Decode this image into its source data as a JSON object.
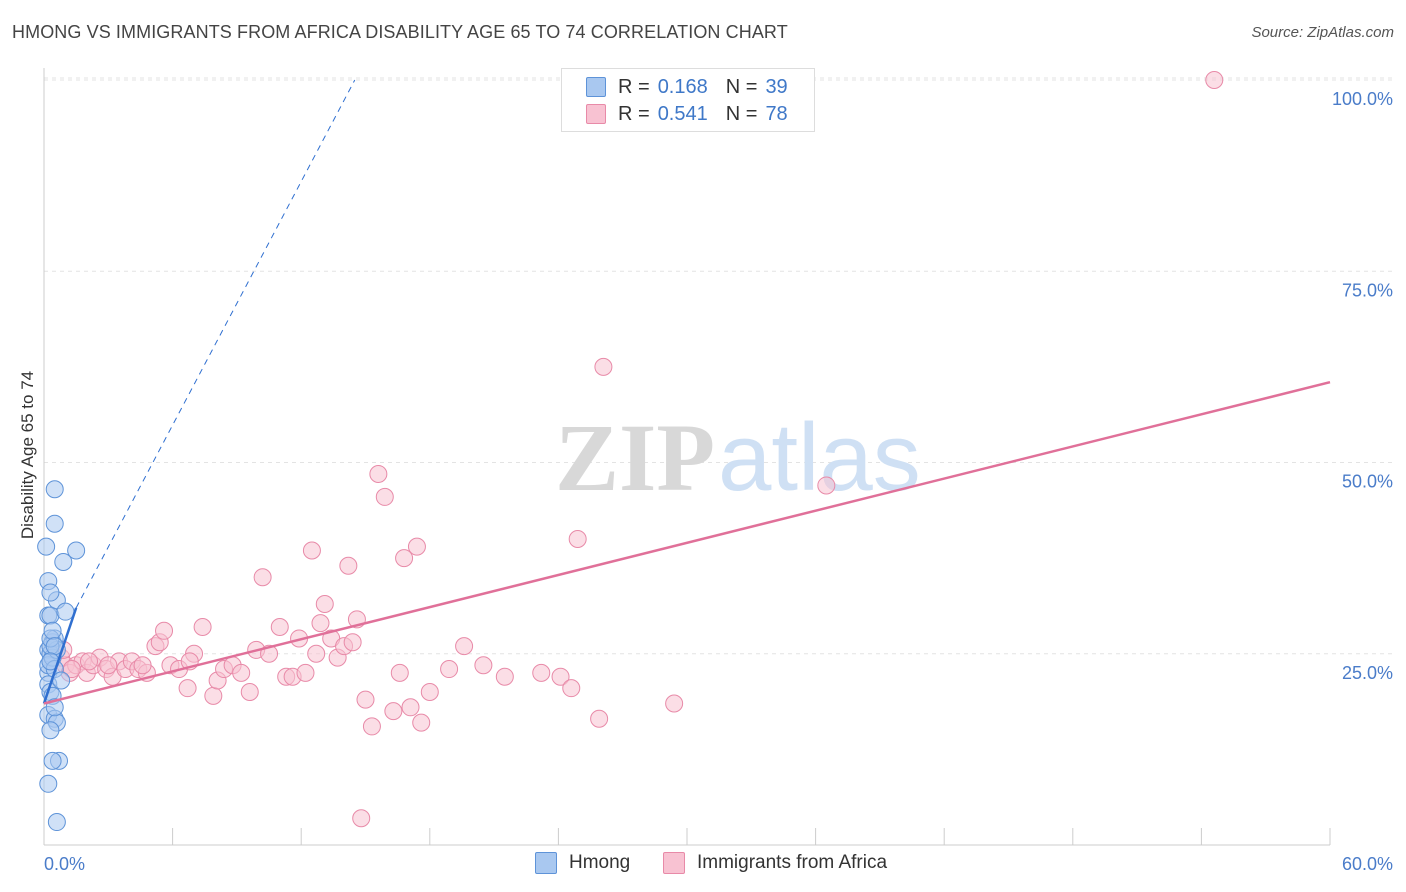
{
  "title": "HMONG VS IMMIGRANTS FROM AFRICA DISABILITY AGE 65 TO 74 CORRELATION CHART",
  "source": "Source: ZipAtlas.com",
  "watermark": {
    "zip": "ZIP",
    "atlas": "atlas"
  },
  "legend": {
    "r_label": "R =",
    "n_label": "N =",
    "rows": [
      {
        "r": "0.168",
        "n": "39",
        "color": "#a9c8f0",
        "stroke": "#5e93d8"
      },
      {
        "r": "0.541",
        "n": "78",
        "color": "#f8c2d2",
        "stroke": "#e88aa8"
      }
    ]
  },
  "bottom_legend": [
    {
      "label": "Hmong"
    },
    {
      "label": "Immigrants from Africa"
    }
  ],
  "colors": {
    "hmong_fill": "#a9c8f0",
    "hmong_stroke": "#5e93d8",
    "hmong_line": "#2f6fd0",
    "africa_fill": "#f8c2d2",
    "africa_stroke": "#e88aa8",
    "africa_line": "#e07099",
    "tick_text": "#4a7cc9",
    "grid": "#e3e3e3"
  },
  "chart_data": {
    "type": "scatter",
    "ylabel": "Disability Age 65 to 74",
    "xlim": [
      0,
      60
    ],
    "ylim": [
      0,
      102
    ],
    "x_tick_labels": [
      "0.0%",
      "60.0%"
    ],
    "y_ticks": [
      25,
      50,
      75,
      100
    ],
    "y_tick_labels": [
      "25.0%",
      "50.0%",
      "75.0%",
      "100.0%"
    ],
    "grid": "horizontal dashed",
    "series": [
      {
        "name": "Hmong",
        "trend": {
          "x": [
            0,
            1.5
          ],
          "y": [
            18.5,
            31
          ],
          "extended_to": [
            14.5,
            100
          ]
        },
        "points": [
          [
            0.2,
            22.5
          ],
          [
            0.3,
            24
          ],
          [
            0.2,
            25.5
          ],
          [
            0.4,
            26.5
          ],
          [
            0.5,
            27
          ],
          [
            0.3,
            25
          ],
          [
            0.2,
            23.5
          ],
          [
            0.4,
            24.5
          ],
          [
            0.6,
            25.5
          ],
          [
            0.3,
            26
          ],
          [
            0.5,
            23
          ],
          [
            0.2,
            21
          ],
          [
            0.3,
            20
          ],
          [
            0.4,
            19.5
          ],
          [
            0.2,
            17
          ],
          [
            0.5,
            16.5
          ],
          [
            0.6,
            16
          ],
          [
            0.3,
            15
          ],
          [
            0.5,
            18
          ],
          [
            0.8,
            21.5
          ],
          [
            0.2,
            30
          ],
          [
            0.3,
            30
          ],
          [
            0.6,
            32
          ],
          [
            1.0,
            30.5
          ],
          [
            0.2,
            34.5
          ],
          [
            0.3,
            33
          ],
          [
            0.1,
            39
          ],
          [
            0.9,
            37
          ],
          [
            1.5,
            38.5
          ],
          [
            0.5,
            42
          ],
          [
            0.5,
            46.5
          ],
          [
            0.7,
            11
          ],
          [
            0.4,
            11
          ],
          [
            0.2,
            8
          ],
          [
            0.6,
            3
          ],
          [
            0.3,
            27
          ],
          [
            0.4,
            28
          ],
          [
            0.5,
            26
          ],
          [
            0.3,
            24
          ]
        ]
      },
      {
        "name": "Immigrants from Africa",
        "trend": {
          "x": [
            0,
            60
          ],
          "y": [
            18.5,
            60.5
          ]
        },
        "points": [
          [
            0.8,
            24.5
          ],
          [
            1.0,
            23.5
          ],
          [
            1.2,
            22.5
          ],
          [
            1.5,
            23.5
          ],
          [
            1.8,
            24
          ],
          [
            2.0,
            22.5
          ],
          [
            2.3,
            23.5
          ],
          [
            2.6,
            24.5
          ],
          [
            2.9,
            23
          ],
          [
            3.2,
            22
          ],
          [
            3.5,
            24
          ],
          [
            3.8,
            23
          ],
          [
            4.1,
            24
          ],
          [
            4.4,
            23
          ],
          [
            4.8,
            22.5
          ],
          [
            5.2,
            26
          ],
          [
            5.4,
            26.5
          ],
          [
            5.6,
            28
          ],
          [
            5.9,
            23.5
          ],
          [
            6.3,
            23
          ],
          [
            6.7,
            20.5
          ],
          [
            7.0,
            25
          ],
          [
            7.4,
            28.5
          ],
          [
            7.9,
            19.5
          ],
          [
            8.1,
            21.5
          ],
          [
            8.4,
            23
          ],
          [
            8.8,
            23.5
          ],
          [
            9.2,
            22.5
          ],
          [
            9.6,
            20
          ],
          [
            9.9,
            25.5
          ],
          [
            10.2,
            35
          ],
          [
            10.5,
            25
          ],
          [
            11.0,
            28.5
          ],
          [
            11.3,
            22
          ],
          [
            11.6,
            22
          ],
          [
            11.9,
            27
          ],
          [
            12.2,
            22.5
          ],
          [
            12.5,
            38.5
          ],
          [
            12.7,
            25
          ],
          [
            12.9,
            29
          ],
          [
            13.1,
            31.5
          ],
          [
            13.4,
            27
          ],
          [
            13.7,
            24.5
          ],
          [
            14.0,
            26
          ],
          [
            14.2,
            36.5
          ],
          [
            14.4,
            26.5
          ],
          [
            14.6,
            29.5
          ],
          [
            15.0,
            19
          ],
          [
            15.3,
            15.5
          ],
          [
            15.6,
            48.5
          ],
          [
            15.9,
            45.5
          ],
          [
            16.3,
            17.5
          ],
          [
            16.6,
            22.5
          ],
          [
            16.8,
            37.5
          ],
          [
            17.1,
            18
          ],
          [
            17.4,
            39
          ],
          [
            17.6,
            16
          ],
          [
            18.0,
            20
          ],
          [
            18.9,
            23
          ],
          [
            19.6,
            26
          ],
          [
            20.5,
            23.5
          ],
          [
            21.5,
            22
          ],
          [
            23.2,
            22.5
          ],
          [
            24.1,
            22
          ],
          [
            24.6,
            20.5
          ],
          [
            24.9,
            40
          ],
          [
            25.9,
            16.5
          ],
          [
            26.1,
            62.5
          ],
          [
            29.4,
            18.5
          ],
          [
            36.5,
            47
          ],
          [
            54.6,
            100
          ],
          [
            14.8,
            3.5
          ],
          [
            1.3,
            23
          ],
          [
            2.1,
            24
          ],
          [
            3.0,
            23.5
          ],
          [
            4.6,
            23.5
          ],
          [
            6.8,
            24
          ],
          [
            0.9,
            25.5
          ]
        ]
      }
    ]
  }
}
